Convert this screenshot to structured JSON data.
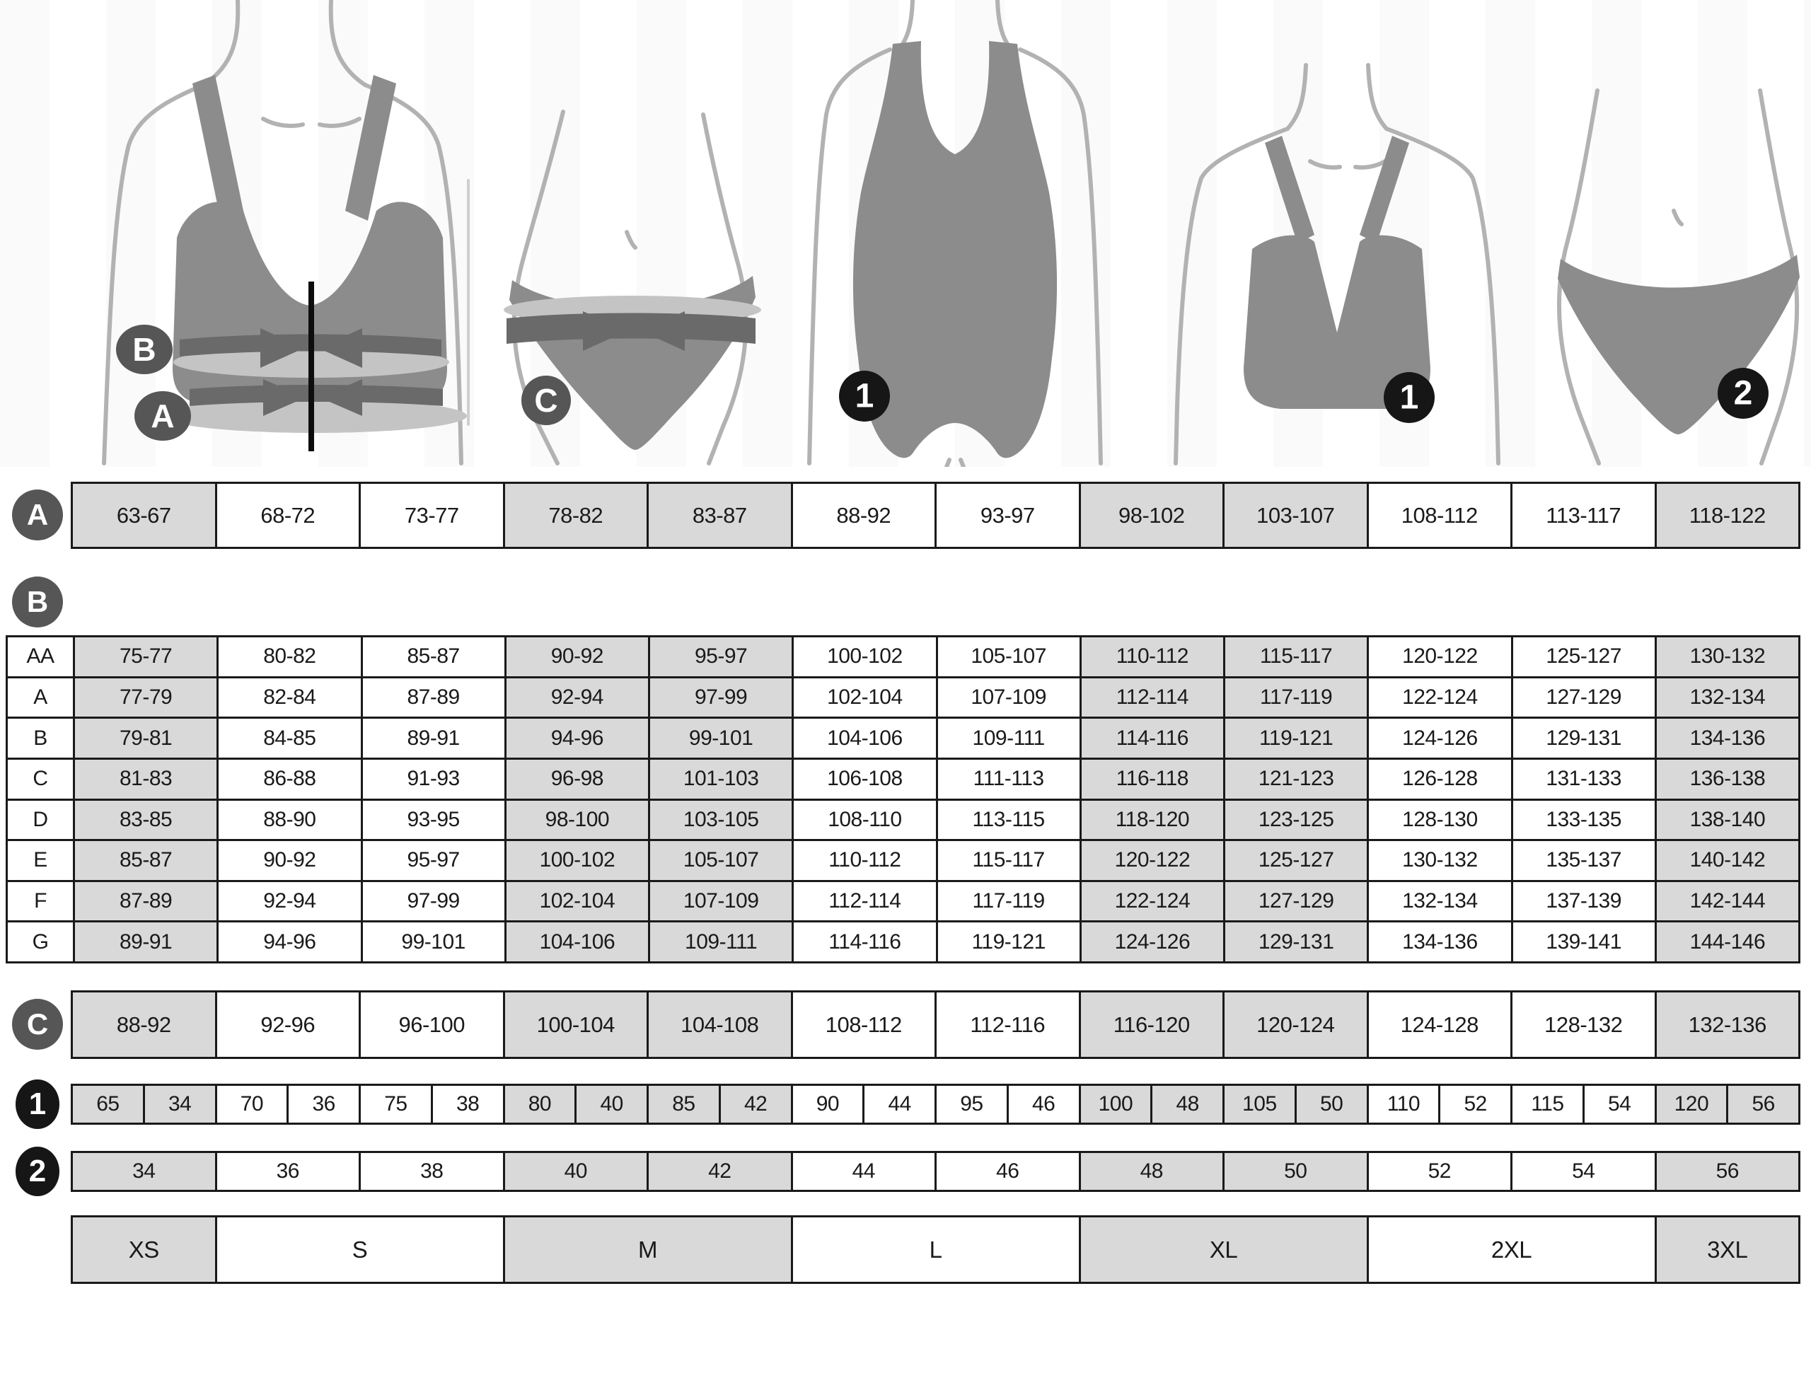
{
  "colors": {
    "ink": "#1a1a1a",
    "cell_gray": "#d9d9d9",
    "cell_white": "#ffffff",
    "badge_gray": "#565656",
    "badge_black": "#161616",
    "garment_gray": "#8c8c8c",
    "band_dark": "#6a6a6a",
    "band_light": "#c4c4c4",
    "figure_outline": "#b2b2b2"
  },
  "layout": {
    "shaded_columns": [
      0,
      3,
      4,
      7,
      8,
      11
    ]
  },
  "underbust_row": {
    "badge": "A",
    "cells": [
      "63-67",
      "68-72",
      "73-77",
      "78-82",
      "83-87",
      "88-92",
      "93-97",
      "98-102",
      "103-107",
      "108-112",
      "113-117",
      "118-122"
    ]
  },
  "cup_table": {
    "badge": "B",
    "rows": [
      {
        "label": "AA",
        "cells": [
          "75-77",
          "80-82",
          "85-87",
          "90-92",
          "95-97",
          "100-102",
          "105-107",
          "110-112",
          "115-117",
          "120-122",
          "125-127",
          "130-132"
        ]
      },
      {
        "label": "A",
        "cells": [
          "77-79",
          "82-84",
          "87-89",
          "92-94",
          "97-99",
          "102-104",
          "107-109",
          "112-114",
          "117-119",
          "122-124",
          "127-129",
          "132-134"
        ]
      },
      {
        "label": "B",
        "cells": [
          "79-81",
          "84-85",
          "89-91",
          "94-96",
          "99-101",
          "104-106",
          "109-111",
          "114-116",
          "119-121",
          "124-126",
          "129-131",
          "134-136"
        ]
      },
      {
        "label": "C",
        "cells": [
          "81-83",
          "86-88",
          "91-93",
          "96-98",
          "101-103",
          "106-108",
          "111-113",
          "116-118",
          "121-123",
          "126-128",
          "131-133",
          "136-138"
        ]
      },
      {
        "label": "D",
        "cells": [
          "83-85",
          "88-90",
          "93-95",
          "98-100",
          "103-105",
          "108-110",
          "113-115",
          "118-120",
          "123-125",
          "128-130",
          "133-135",
          "138-140"
        ]
      },
      {
        "label": "E",
        "cells": [
          "85-87",
          "90-92",
          "95-97",
          "100-102",
          "105-107",
          "110-112",
          "115-117",
          "120-122",
          "125-127",
          "130-132",
          "135-137",
          "140-142"
        ]
      },
      {
        "label": "F",
        "cells": [
          "87-89",
          "92-94",
          "97-99",
          "102-104",
          "107-109",
          "112-114",
          "117-119",
          "122-124",
          "127-129",
          "132-134",
          "137-139",
          "142-144"
        ]
      },
      {
        "label": "G",
        "cells": [
          "89-91",
          "94-96",
          "99-101",
          "104-106",
          "109-111",
          "114-116",
          "119-121",
          "124-126",
          "129-131",
          "134-136",
          "139-141",
          "144-146"
        ]
      }
    ]
  },
  "hips_row": {
    "badge": "C",
    "cells": [
      "88-92",
      "92-96",
      "96-100",
      "100-104",
      "104-108",
      "108-112",
      "112-116",
      "116-120",
      "120-124",
      "124-128",
      "128-132",
      "132-136"
    ]
  },
  "bra_size_row": {
    "badge": "1",
    "cells": [
      "65",
      "34",
      "70",
      "36",
      "75",
      "38",
      "80",
      "40",
      "85",
      "42",
      "90",
      "44",
      "95",
      "46",
      "100",
      "48",
      "105",
      "50",
      "110",
      "52",
      "115",
      "54",
      "120",
      "56"
    ]
  },
  "panty_size_row": {
    "badge": "2",
    "cells": [
      "34",
      "36",
      "38",
      "40",
      "42",
      "44",
      "46",
      "48",
      "50",
      "52",
      "54",
      "56"
    ]
  },
  "letter_size_row": {
    "cells": [
      {
        "label": "XS",
        "span": 1,
        "shaded": true
      },
      {
        "label": "S",
        "span": 2,
        "shaded": false
      },
      {
        "label": "M",
        "span": 2,
        "shaded": true
      },
      {
        "label": "L",
        "span": 2,
        "shaded": false
      },
      {
        "label": "XL",
        "span": 2,
        "shaded": true
      },
      {
        "label": "2XL",
        "span": 2,
        "shaded": false
      },
      {
        "label": "3XL",
        "span": 1,
        "shaded": true
      }
    ]
  }
}
